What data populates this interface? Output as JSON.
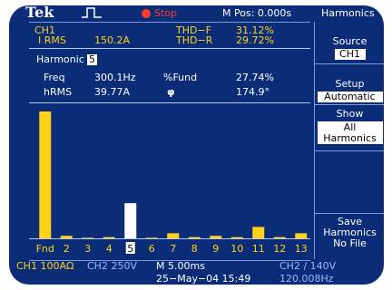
{
  "topbar": {
    "logo": "Tek",
    "status": "Stop",
    "m_pos": "M Pos: 0.000s",
    "screen_title": "Harmonics"
  },
  "summary": {
    "channel": "CH1",
    "irms_label": "I RMS",
    "irms_value": "150.2A",
    "thd_f_label": "THD−F",
    "thd_f_value": "31.12%",
    "thd_r_label": "THD−R",
    "thd_r_value": "29.72%"
  },
  "harmonic": {
    "label": "Harmonic",
    "selected": "5",
    "freq_label": "Freq",
    "freq_value": "300.1Hz",
    "fund_label": "%Fund",
    "fund_value": "27.74%",
    "hrms_label": "hRMS",
    "hrms_value": "39.77A",
    "phase_label": "φ",
    "phase_value": "174.9°"
  },
  "chart_data": {
    "type": "bar",
    "categories": [
      "Fnd",
      "2",
      "3",
      "4",
      "5",
      "6",
      "7",
      "8",
      "9",
      "10",
      "11",
      "12",
      "13"
    ],
    "values": [
      100,
      2,
      0.5,
      1,
      27.74,
      0.5,
      4,
      1,
      2,
      1,
      9,
      1,
      4
    ],
    "highlighted_index": 4,
    "ylim": [
      0,
      100
    ],
    "bar_color": "#ffd21a",
    "highlight_color": "#ffffff"
  },
  "side_menu": {
    "source": {
      "label": "Source",
      "value": "CH1"
    },
    "setup": {
      "label": "Setup",
      "value": "Automatic"
    },
    "show": {
      "label": "Show",
      "value_line1": "All",
      "value_line2": "Harmonics"
    },
    "save": {
      "label_line1": "Save",
      "label_line2": "Harmonics",
      "value": "No File"
    }
  },
  "bottom": {
    "ch1": "CH1 100AΩ",
    "ch2": "CH2 250V",
    "timebase": "M 5.00ms",
    "trigger": "CH2 ∕ 140V",
    "date": "25−May−04 15:49",
    "freq": "120.008Hz"
  },
  "colors": {
    "background": "#0b2d78",
    "text": "#ffffff",
    "channel1": "#ffd21a",
    "stop": "#ff3b2f",
    "channel2": "#9fb4ff"
  }
}
